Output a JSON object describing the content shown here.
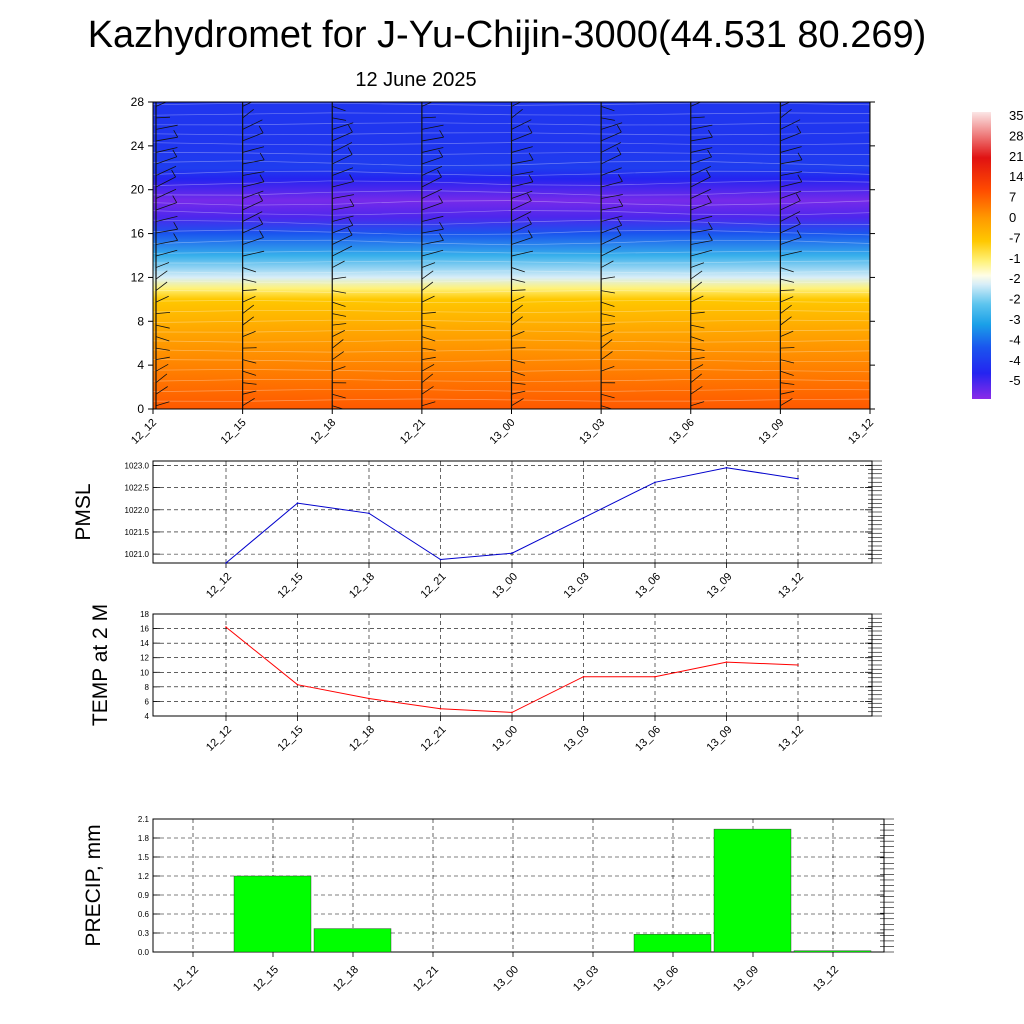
{
  "header": {
    "title": "Kazhydromet for J-Yu-Chijin-3000(44.531 80.269)",
    "subtitle": "12 June 2025"
  },
  "colors": {
    "pmsl_line": "#0000cc",
    "temp_line": "#ff0000",
    "precip_bar": "#00ff00",
    "grid": "#000000"
  },
  "chart_data": [
    {
      "id": "temperature-cross-section",
      "type": "heatmap",
      "x": [
        "12_12",
        "12_15",
        "12_18",
        "12_21",
        "13_00",
        "13_03",
        "13_06",
        "13_09",
        "13_12"
      ],
      "yticks": [
        0,
        4,
        8,
        12,
        16,
        20,
        24,
        28
      ],
      "ylim": [
        0,
        28
      ],
      "colorbar_labels": [
        "35",
        "28",
        "21",
        "14",
        "7",
        "0",
        "-7",
        "-1",
        "-2",
        "-2",
        "-3",
        "-4",
        "-4",
        "-5"
      ],
      "colorbar_range": [
        -55,
        35
      ],
      "profile_levels": [
        0,
        2,
        4,
        6,
        8,
        10,
        11,
        12,
        14,
        16,
        17.5,
        19,
        21,
        22,
        24,
        28
      ],
      "profile_temps": [
        12,
        9,
        6,
        3,
        -1,
        -5,
        -10,
        -20,
        -32,
        -42,
        -52,
        -54,
        -50,
        -46,
        -47,
        -47
      ],
      "wind_barbs": true
    },
    {
      "id": "pmsl",
      "type": "line",
      "ylabel": "PMSL",
      "x": [
        "12_12",
        "12_15",
        "12_18",
        "12_21",
        "13_00",
        "13_03",
        "13_06",
        "13_09",
        "13_12"
      ],
      "values": [
        1020.8,
        1022.15,
        1021.92,
        1020.88,
        1021.02,
        1021.82,
        1022.62,
        1022.95,
        1022.7
      ],
      "yticks": [
        "1021.0",
        "1021.5",
        "1022.0",
        "1022.5",
        "1023.0"
      ],
      "ylim": [
        1020.8,
        1023.1
      ],
      "grid": true
    },
    {
      "id": "temp-2m",
      "type": "line",
      "ylabel": "TEMP at 2 M",
      "x": [
        "12_12",
        "12_15",
        "12_18",
        "12_21",
        "13_00",
        "13_03",
        "13_06",
        "13_09",
        "13_12"
      ],
      "values": [
        16.2,
        8.3,
        6.4,
        5.0,
        4.5,
        9.4,
        9.4,
        11.4,
        11.0
      ],
      "yticks": [
        "4",
        "6",
        "8",
        "10",
        "12",
        "14",
        "16",
        "18"
      ],
      "ylim": [
        4,
        18
      ],
      "grid": true
    },
    {
      "id": "precip",
      "type": "bar",
      "ylabel": "PRECIP, mm",
      "categories": [
        "12_12",
        "12_15",
        "12_18",
        "12_21",
        "13_00",
        "13_03",
        "13_06",
        "13_09",
        "13_12"
      ],
      "values": [
        0,
        1.2,
        0.37,
        0,
        0,
        0,
        0.28,
        1.94,
        0.02
      ],
      "yticks": [
        "0.0",
        "0.3",
        "0.6",
        "0.9",
        "1.2",
        "1.5",
        "1.8",
        "2.1"
      ],
      "ylim": [
        0,
        2.1
      ],
      "grid": true
    }
  ]
}
